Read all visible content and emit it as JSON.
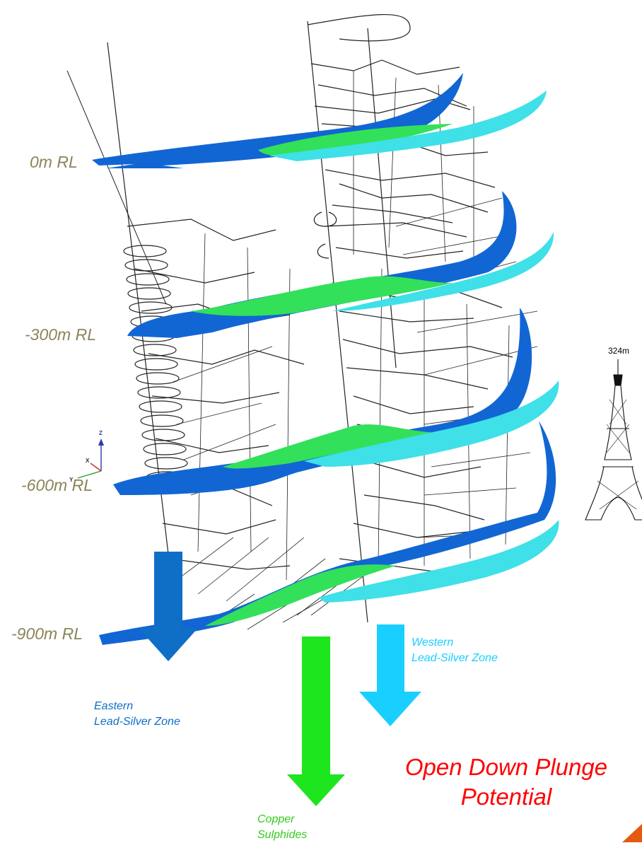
{
  "levels": [
    "0m RL",
    "-300m RL",
    "-600m RL",
    "-900m RL"
  ],
  "zones": {
    "eastern": {
      "line1": "Eastern",
      "line2": "Lead-Silver Zone",
      "color": "#0f6fc6"
    },
    "copper": {
      "line1": "Copper",
      "line2": "Sulphides",
      "color": "#1ee61e"
    },
    "western": {
      "line1": "Western",
      "line2": "Lead-Silver Zone",
      "color": "#19cfff"
    }
  },
  "orebody_colors": {
    "eastern": "#1166d4",
    "copper": "#33e05a",
    "western": "#3fe0e8"
  },
  "plunge": {
    "line1": "Open Down Plunge",
    "line2": "Potential"
  },
  "scale_reference": {
    "height_label": "324m",
    "object": "eiffel-tower"
  },
  "axes": {
    "z": "Z",
    "x": "X",
    "y": "Y"
  },
  "level_label_color": "#8c845a",
  "plunge_text_color": "#ff0000"
}
